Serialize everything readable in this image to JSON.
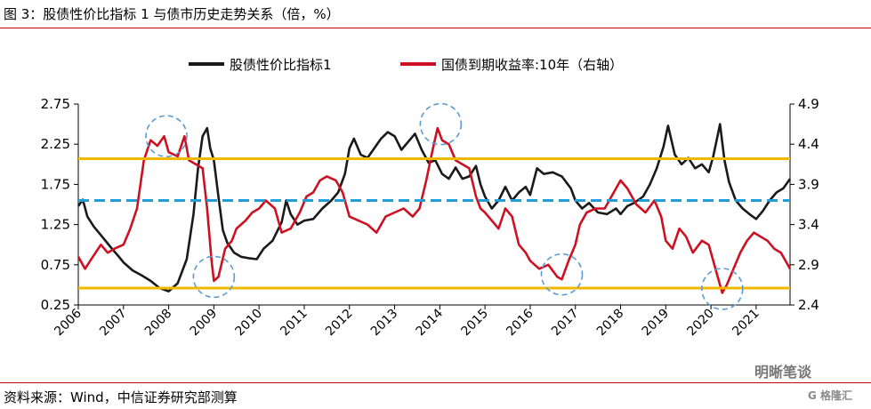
{
  "figure_title": "图 3：股债性价比指标 1 与债市历史走势关系（倍，%）",
  "source": "资料来源：Wind，中信证券研究部测算",
  "watermark": {
    "text": "明晰笔谈",
    "logo": "G 格隆汇"
  },
  "colors": {
    "ratio": "#1a1a1a",
    "yield": "#cc1122",
    "band": "#f2b800",
    "mean": "#1f9fd6",
    "circle": "#5b9bd5",
    "rule": "#c00000"
  },
  "chart_data": {
    "type": "line",
    "legend_position": "top",
    "grid": false,
    "left_axis": {
      "min": 0.25,
      "max": 2.75,
      "ticks": [
        "0.25",
        "0.75",
        "1.25",
        "1.75",
        "2.25",
        "2.75"
      ]
    },
    "right_axis": {
      "min": 2.4,
      "max": 4.9,
      "ticks": [
        "2.4",
        "2.9",
        "3.4",
        "3.9",
        "4.4",
        "4.9"
      ]
    },
    "x_axis": {
      "min": 2006,
      "max": 2021.75,
      "ticks": [
        "2006",
        "2007",
        "2008",
        "2009",
        "2010",
        "2011",
        "2012",
        "2013",
        "2014",
        "2015",
        "2016",
        "2017",
        "2018",
        "2019",
        "2020",
        "2021"
      ]
    },
    "series": [
      {
        "name": "股债性价比指标1",
        "axis": "left",
        "points": [
          [
            2006.0,
            1.48
          ],
          [
            2006.1,
            1.56
          ],
          [
            2006.2,
            1.35
          ],
          [
            2006.35,
            1.22
          ],
          [
            2006.5,
            1.12
          ],
          [
            2006.7,
            0.98
          ],
          [
            2006.9,
            0.85
          ],
          [
            2007.0,
            0.78
          ],
          [
            2007.2,
            0.68
          ],
          [
            2007.4,
            0.62
          ],
          [
            2007.6,
            0.55
          ],
          [
            2007.8,
            0.46
          ],
          [
            2008.0,
            0.42
          ],
          [
            2008.2,
            0.52
          ],
          [
            2008.4,
            0.82
          ],
          [
            2008.55,
            1.38
          ],
          [
            2008.65,
            1.95
          ],
          [
            2008.75,
            2.35
          ],
          [
            2008.85,
            2.45
          ],
          [
            2008.92,
            2.2
          ],
          [
            2009.0,
            2.05
          ],
          [
            2009.1,
            1.6
          ],
          [
            2009.2,
            1.18
          ],
          [
            2009.3,
            1.02
          ],
          [
            2009.45,
            0.9
          ],
          [
            2009.6,
            0.85
          ],
          [
            2009.8,
            0.83
          ],
          [
            2009.95,
            0.82
          ],
          [
            2010.1,
            0.95
          ],
          [
            2010.3,
            1.05
          ],
          [
            2010.5,
            1.28
          ],
          [
            2010.6,
            1.55
          ],
          [
            2010.7,
            1.38
          ],
          [
            2010.85,
            1.25
          ],
          [
            2011.0,
            1.3
          ],
          [
            2011.2,
            1.32
          ],
          [
            2011.4,
            1.45
          ],
          [
            2011.6,
            1.55
          ],
          [
            2011.75,
            1.65
          ],
          [
            2011.9,
            1.88
          ],
          [
            2012.0,
            2.2
          ],
          [
            2012.1,
            2.32
          ],
          [
            2012.25,
            2.12
          ],
          [
            2012.4,
            2.08
          ],
          [
            2012.55,
            2.2
          ],
          [
            2012.7,
            2.32
          ],
          [
            2012.85,
            2.4
          ],
          [
            2013.0,
            2.35
          ],
          [
            2013.15,
            2.18
          ],
          [
            2013.3,
            2.28
          ],
          [
            2013.45,
            2.38
          ],
          [
            2013.6,
            2.18
          ],
          [
            2013.75,
            2.02
          ],
          [
            2013.9,
            2.05
          ],
          [
            2014.05,
            1.88
          ],
          [
            2014.2,
            1.82
          ],
          [
            2014.35,
            1.96
          ],
          [
            2014.5,
            1.82
          ],
          [
            2014.65,
            1.85
          ],
          [
            2014.8,
            1.98
          ],
          [
            2014.9,
            1.75
          ],
          [
            2015.0,
            1.6
          ],
          [
            2015.15,
            1.45
          ],
          [
            2015.3,
            1.55
          ],
          [
            2015.45,
            1.72
          ],
          [
            2015.6,
            1.55
          ],
          [
            2015.75,
            1.65
          ],
          [
            2015.9,
            1.72
          ],
          [
            2016.0,
            1.62
          ],
          [
            2016.15,
            1.95
          ],
          [
            2016.3,
            1.88
          ],
          [
            2016.5,
            1.9
          ],
          [
            2016.7,
            1.85
          ],
          [
            2016.9,
            1.7
          ],
          [
            2017.0,
            1.55
          ],
          [
            2017.15,
            1.45
          ],
          [
            2017.3,
            1.52
          ],
          [
            2017.5,
            1.4
          ],
          [
            2017.7,
            1.38
          ],
          [
            2017.9,
            1.45
          ],
          [
            2018.0,
            1.38
          ],
          [
            2018.15,
            1.48
          ],
          [
            2018.3,
            1.52
          ],
          [
            2018.5,
            1.6
          ],
          [
            2018.65,
            1.75
          ],
          [
            2018.8,
            1.95
          ],
          [
            2018.95,
            2.22
          ],
          [
            2019.05,
            2.48
          ],
          [
            2019.2,
            2.12
          ],
          [
            2019.35,
            2.0
          ],
          [
            2019.5,
            2.08
          ],
          [
            2019.65,
            1.95
          ],
          [
            2019.8,
            2.0
          ],
          [
            2019.95,
            1.9
          ],
          [
            2020.05,
            2.1
          ],
          [
            2020.2,
            2.5
          ],
          [
            2020.3,
            2.05
          ],
          [
            2020.4,
            1.78
          ],
          [
            2020.55,
            1.55
          ],
          [
            2020.7,
            1.45
          ],
          [
            2020.85,
            1.38
          ],
          [
            2021.0,
            1.32
          ],
          [
            2021.15,
            1.42
          ],
          [
            2021.3,
            1.55
          ],
          [
            2021.45,
            1.65
          ],
          [
            2021.6,
            1.7
          ],
          [
            2021.75,
            1.82
          ]
        ]
      },
      {
        "name": "国债到期收益率:10年（右轴）",
        "axis": "right",
        "points": [
          [
            2006.0,
            3.0
          ],
          [
            2006.15,
            2.85
          ],
          [
            2006.3,
            2.98
          ],
          [
            2006.5,
            3.15
          ],
          [
            2006.65,
            3.05
          ],
          [
            2006.8,
            3.1
          ],
          [
            2007.0,
            3.15
          ],
          [
            2007.15,
            3.35
          ],
          [
            2007.3,
            3.6
          ],
          [
            2007.45,
            4.2
          ],
          [
            2007.6,
            4.45
          ],
          [
            2007.75,
            4.38
          ],
          [
            2007.9,
            4.5
          ],
          [
            2008.0,
            4.3
          ],
          [
            2008.2,
            4.25
          ],
          [
            2008.35,
            4.5
          ],
          [
            2008.45,
            4.2
          ],
          [
            2008.6,
            4.15
          ],
          [
            2008.75,
            4.1
          ],
          [
            2008.85,
            3.6
          ],
          [
            2008.95,
            2.95
          ],
          [
            2009.0,
            2.7
          ],
          [
            2009.1,
            2.75
          ],
          [
            2009.25,
            3.1
          ],
          [
            2009.4,
            3.2
          ],
          [
            2009.5,
            3.35
          ],
          [
            2009.7,
            3.45
          ],
          [
            2009.85,
            3.55
          ],
          [
            2010.0,
            3.6
          ],
          [
            2010.15,
            3.7
          ],
          [
            2010.35,
            3.6
          ],
          [
            2010.5,
            3.3
          ],
          [
            2010.7,
            3.35
          ],
          [
            2010.9,
            3.55
          ],
          [
            2011.05,
            3.75
          ],
          [
            2011.2,
            3.8
          ],
          [
            2011.35,
            3.95
          ],
          [
            2011.5,
            4.0
          ],
          [
            2011.7,
            3.95
          ],
          [
            2011.85,
            3.8
          ],
          [
            2012.0,
            3.5
          ],
          [
            2012.2,
            3.45
          ],
          [
            2012.4,
            3.4
          ],
          [
            2012.6,
            3.3
          ],
          [
            2012.8,
            3.5
          ],
          [
            2013.0,
            3.55
          ],
          [
            2013.2,
            3.6
          ],
          [
            2013.4,
            3.5
          ],
          [
            2013.55,
            3.6
          ],
          [
            2013.7,
            3.95
          ],
          [
            2013.85,
            4.35
          ],
          [
            2013.95,
            4.6
          ],
          [
            2014.05,
            4.45
          ],
          [
            2014.2,
            4.4
          ],
          [
            2014.35,
            4.2
          ],
          [
            2014.5,
            4.15
          ],
          [
            2014.65,
            4.1
          ],
          [
            2014.8,
            3.75
          ],
          [
            2014.9,
            3.6
          ],
          [
            2015.0,
            3.55
          ],
          [
            2015.15,
            3.45
          ],
          [
            2015.3,
            3.35
          ],
          [
            2015.45,
            3.6
          ],
          [
            2015.6,
            3.5
          ],
          [
            2015.75,
            3.15
          ],
          [
            2015.9,
            3.05
          ],
          [
            2016.0,
            2.95
          ],
          [
            2016.2,
            2.85
          ],
          [
            2016.4,
            2.9
          ],
          [
            2016.6,
            2.75
          ],
          [
            2016.7,
            2.72
          ],
          [
            2016.85,
            2.95
          ],
          [
            2017.0,
            3.15
          ],
          [
            2017.1,
            3.4
          ],
          [
            2017.25,
            3.55
          ],
          [
            2017.45,
            3.6
          ],
          [
            2017.65,
            3.6
          ],
          [
            2017.85,
            3.8
          ],
          [
            2018.0,
            3.95
          ],
          [
            2018.15,
            3.85
          ],
          [
            2018.35,
            3.65
          ],
          [
            2018.55,
            3.55
          ],
          [
            2018.75,
            3.7
          ],
          [
            2018.9,
            3.5
          ],
          [
            2019.0,
            3.2
          ],
          [
            2019.15,
            3.1
          ],
          [
            2019.3,
            3.35
          ],
          [
            2019.45,
            3.25
          ],
          [
            2019.6,
            3.05
          ],
          [
            2019.8,
            3.2
          ],
          [
            2019.95,
            3.15
          ],
          [
            2020.05,
            2.95
          ],
          [
            2020.15,
            2.75
          ],
          [
            2020.25,
            2.55
          ],
          [
            2020.35,
            2.65
          ],
          [
            2020.5,
            2.85
          ],
          [
            2020.65,
            3.05
          ],
          [
            2020.8,
            3.2
          ],
          [
            2020.95,
            3.3
          ],
          [
            2021.1,
            3.25
          ],
          [
            2021.25,
            3.2
          ],
          [
            2021.4,
            3.1
          ],
          [
            2021.55,
            3.05
          ],
          [
            2021.65,
            2.95
          ],
          [
            2021.75,
            2.85
          ]
        ]
      }
    ],
    "reference_lines": {
      "upper_band": 2.07,
      "mean": 1.55,
      "lower_band": 0.46
    },
    "highlight_circles": [
      {
        "x": 2007.95,
        "axis": "right",
        "y": 4.5
      },
      {
        "x": 2009.0,
        "axis": "right",
        "y": 2.75
      },
      {
        "x": 2014.02,
        "axis": "right",
        "y": 4.65
      },
      {
        "x": 2016.7,
        "axis": "right",
        "y": 2.78
      },
      {
        "x": 2020.25,
        "axis": "right",
        "y": 2.6
      }
    ]
  }
}
